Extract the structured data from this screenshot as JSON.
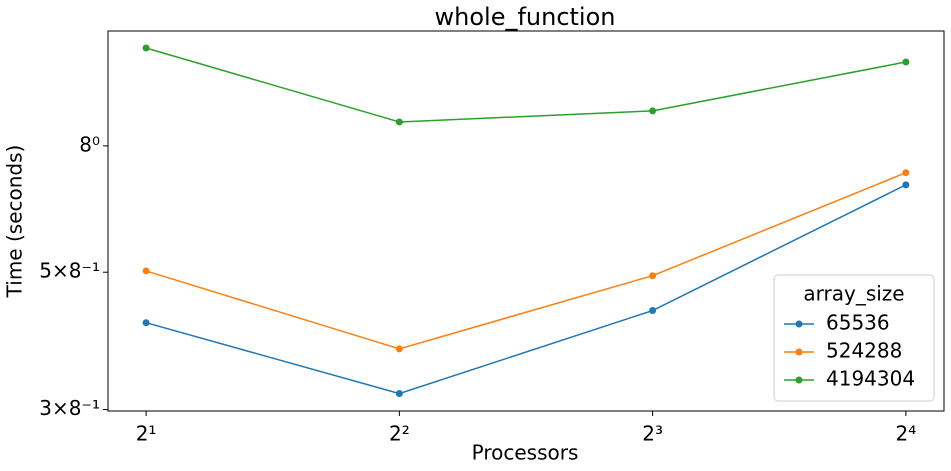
{
  "chart_data": {
    "type": "line",
    "title": "whole_function",
    "x_label": "Processors",
    "y_label": "Time (seconds)",
    "x": [
      2,
      4,
      8,
      16
    ],
    "x_log_base": 2,
    "y_log": true,
    "xlim": [
      1.802,
      17.76
    ],
    "ylim": [
      0.373,
      1.533
    ],
    "xticks": [
      {
        "value": 2,
        "label": "2¹"
      },
      {
        "value": 4,
        "label": "2²"
      },
      {
        "value": 8,
        "label": "2³"
      },
      {
        "value": 16,
        "label": "2⁴"
      }
    ],
    "yticks": [
      {
        "value": 0.375,
        "label": "3×8⁻¹"
      },
      {
        "value": 0.625,
        "label": "5×8⁻¹"
      },
      {
        "value": 1,
        "label": "8⁰"
      }
    ],
    "legend_title": "array_size",
    "legend_position": "lower right",
    "series": [
      {
        "name": "65536",
        "color": "#1f77b4",
        "values": [
          0.518,
          0.398,
          0.542,
          0.865
        ]
      },
      {
        "name": "524288",
        "color": "#ff7f0e",
        "values": [
          0.628,
          0.47,
          0.617,
          0.905
        ]
      },
      {
        "name": "4194304",
        "color": "#2ca02c",
        "values": [
          1.439,
          1.093,
          1.139,
          1.366
        ]
      }
    ]
  }
}
